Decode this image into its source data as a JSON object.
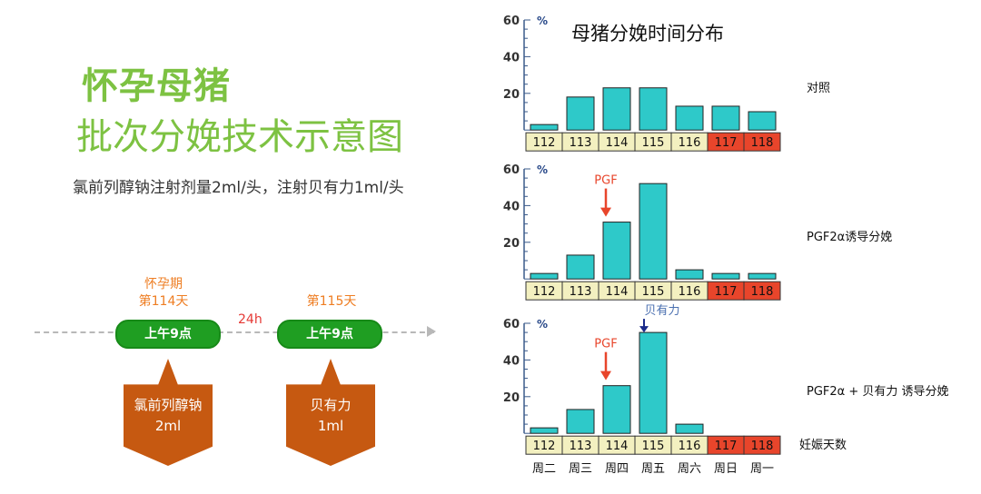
{
  "left": {
    "title_line1": "怀孕母猪",
    "title_line2": "批次分娩技术示意图",
    "dosage_note": "氯前列醇钠注射剂量2ml/头，注射贝有力1ml/头",
    "event1": {
      "label_top": "怀孕期",
      "label_day": "第114天",
      "time": "上午9点"
    },
    "interval": "24h",
    "event2": {
      "label_day": "第115天",
      "time": "上午9点"
    },
    "drug1": {
      "name": "氯前列醇钠",
      "dose": "2ml"
    },
    "drug2": {
      "name": "贝有力",
      "dose": "1ml"
    }
  },
  "chart_data": {
    "type": "bar",
    "title": "母猪分娩时间分布",
    "unit": "%",
    "y_ticks": [
      20,
      40,
      60
    ],
    "ylim": [
      0,
      60
    ],
    "categories": [
      "112",
      "113",
      "114",
      "115",
      "116",
      "117",
      "118"
    ],
    "weekdays": [
      "周二",
      "周三",
      "周四",
      "周五",
      "周六",
      "周日",
      "周一"
    ],
    "x_axis_caption": "妊娠天数",
    "highlight_categories": [
      "117",
      "118"
    ],
    "colors": {
      "bar": "#2ec9c9",
      "cell": "#f3f0c0",
      "highlight_cell": "#e8452b",
      "arrow_red": "#e8452b",
      "arrow_blue": "#1a2a8a",
      "axis": "#3a5a8a"
    },
    "panels": [
      {
        "label": "对照",
        "values": [
          3,
          18,
          23,
          23,
          13,
          13,
          10
        ],
        "markers": []
      },
      {
        "label": "PGF2α诱导分娩",
        "values": [
          3,
          13,
          31,
          52,
          5,
          3,
          3
        ],
        "markers": [
          {
            "category": "114",
            "text": "PGF",
            "color": "red"
          }
        ]
      },
      {
        "label": "PGF2α + 贝有力 诱导分娩",
        "values": [
          3,
          13,
          26,
          55,
          5,
          0,
          0
        ],
        "markers": [
          {
            "category": "114",
            "text": "PGF",
            "color": "red"
          },
          {
            "category": "115",
            "text": "贝有力",
            "color": "blue"
          }
        ]
      }
    ]
  }
}
